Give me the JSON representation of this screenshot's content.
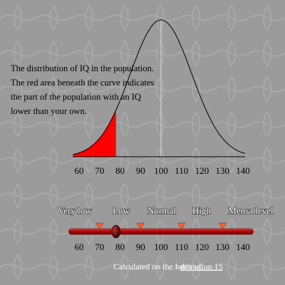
{
  "description": [
    "The distribution of IQ in the population.",
    "The red area beneath the curve indicates",
    "the part of the population with an IQ",
    "lower than your own."
  ],
  "chart_data": {
    "type": "normal",
    "mean": 100,
    "deviation": 15,
    "your_iq": 78,
    "fill_color": "#ff0000",
    "line_color": "#000000",
    "xlim": [
      57,
      141
    ],
    "xticks": [
      60,
      70,
      80,
      90,
      100,
      110,
      120,
      130,
      140
    ]
  },
  "slider": {
    "bands": [
      "Very low",
      "Low",
      "Normal",
      "High",
      "Mensa level"
    ],
    "thresholds": [
      70,
      90,
      110,
      130
    ],
    "range": [
      55,
      145
    ],
    "ticks": [
      60,
      70,
      80,
      90,
      100,
      110,
      120,
      130,
      140
    ],
    "value": 78
  },
  "footer": {
    "text": "Calculated on the basis of",
    "link": "deviation 15"
  }
}
